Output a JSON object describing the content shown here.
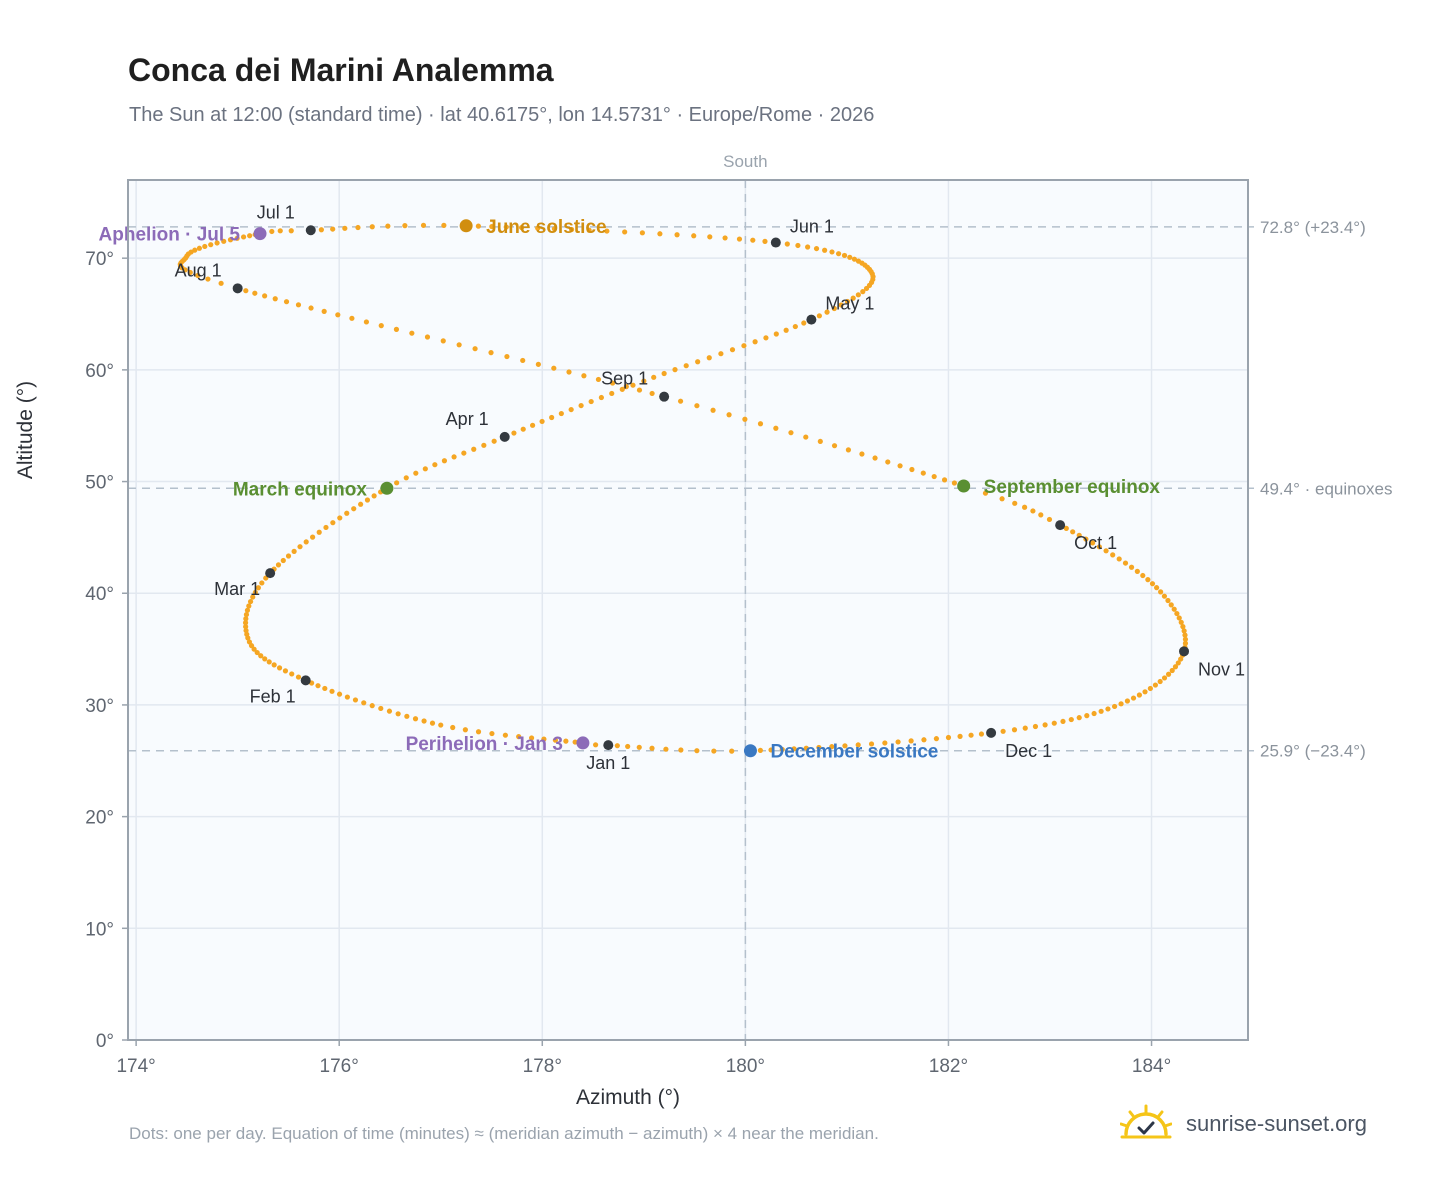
{
  "title": "Conca dei Marini Analemma",
  "subtitle": "The Sun at 12:00 (standard time) · lat 40.6175°, lon 14.5731° · Europe/Rome · 2026",
  "footnote": "Dots: one per day. Equation of time (minutes) ≈ (meridian azimuth − azimuth) × 4 near the meridian.",
  "brand": {
    "text": "sunrise-sunset.org",
    "icon": "sun-logo-icon"
  },
  "colors": {
    "path": "#f5a623",
    "month_dot": "#343a40",
    "june_solstice": "#d18e0f",
    "december_solstice": "#3a78c2",
    "equinox": "#5a8f32",
    "apsis": "#8c6bb8",
    "plot_bg": "#f8fbfe",
    "grid": "#e2e8f0",
    "frame": "#9aa3ad",
    "guide": "#b4c0cc"
  },
  "chart_data": {
    "type": "scatter",
    "xlabel": "Azimuth (°)",
    "ylabel": "Altitude (°)",
    "xlim": [
      173.92,
      184.95
    ],
    "ylim": [
      0,
      77
    ],
    "xticks": [
      174,
      176,
      178,
      180,
      182,
      184
    ],
    "xtick_labels": [
      "174°",
      "176°",
      "178°",
      "180°",
      "182°",
      "184°"
    ],
    "yticks": [
      0,
      10,
      20,
      30,
      40,
      50,
      60,
      70
    ],
    "ytick_labels": [
      "0°",
      "10°",
      "20°",
      "30°",
      "40°",
      "50°",
      "60°",
      "70°"
    ],
    "grid": true,
    "south_marker": {
      "x": 180,
      "label": "South"
    },
    "reference_lines": [
      {
        "y": 72.8,
        "label": "72.8° (+23.4°)"
      },
      {
        "y": 49.4,
        "label": "49.4° · equinoxes"
      },
      {
        "y": 25.9,
        "label": "25.9° (−23.4°)"
      }
    ],
    "anchors": [
      {
        "day": 1,
        "x": 178.65,
        "y": 26.4
      },
      {
        "day": 3,
        "x": 178.4,
        "y": 26.6
      },
      {
        "day": 15,
        "x": 177.0,
        "y": 28.2
      },
      {
        "day": 32,
        "x": 175.67,
        "y": 32.2
      },
      {
        "day": 45,
        "x": 175.1,
        "y": 36.0
      },
      {
        "day": 60,
        "x": 175.32,
        "y": 41.8
      },
      {
        "day": 79,
        "x": 176.47,
        "y": 49.4
      },
      {
        "day": 91,
        "x": 177.63,
        "y": 54.0
      },
      {
        "day": 105,
        "x": 179.0,
        "y": 59.0
      },
      {
        "day": 121,
        "x": 180.65,
        "y": 64.5
      },
      {
        "day": 135,
        "x": 181.25,
        "y": 68.6
      },
      {
        "day": 152,
        "x": 180.3,
        "y": 71.4
      },
      {
        "day": 172,
        "x": 177.25,
        "y": 72.9
      },
      {
        "day": 182,
        "x": 175.72,
        "y": 72.5
      },
      {
        "day": 186,
        "x": 175.22,
        "y": 72.2
      },
      {
        "day": 200,
        "x": 174.5,
        "y": 70.2
      },
      {
        "day": 213,
        "x": 175.0,
        "y": 67.3
      },
      {
        "day": 244,
        "x": 179.2,
        "y": 57.6
      },
      {
        "day": 266,
        "x": 182.15,
        "y": 49.6
      },
      {
        "day": 274,
        "x": 183.1,
        "y": 46.1
      },
      {
        "day": 290,
        "x": 184.05,
        "y": 40.5
      },
      {
        "day": 305,
        "x": 184.32,
        "y": 34.8
      },
      {
        "day": 320,
        "x": 183.7,
        "y": 30.1
      },
      {
        "day": 335,
        "x": 182.42,
        "y": 27.5
      },
      {
        "day": 355,
        "x": 180.05,
        "y": 25.9
      },
      {
        "day": 365,
        "x": 178.65,
        "y": 26.4
      }
    ],
    "months": [
      {
        "label": "Jan 1",
        "x": 178.65,
        "y": 26.4,
        "pos": "below"
      },
      {
        "label": "Feb 1",
        "x": 175.67,
        "y": 32.2,
        "pos": "below-left"
      },
      {
        "label": "Mar 1",
        "x": 175.32,
        "y": 41.8,
        "pos": "below-left"
      },
      {
        "label": "Apr 1",
        "x": 177.63,
        "y": 54.0,
        "pos": "above-left"
      },
      {
        "label": "May 1",
        "x": 180.65,
        "y": 64.5,
        "pos": "above-right"
      },
      {
        "label": "Jun 1",
        "x": 180.3,
        "y": 71.4,
        "pos": "above-right"
      },
      {
        "label": "Jul 1",
        "x": 175.72,
        "y": 72.5,
        "pos": "above-left"
      },
      {
        "label": "Aug 1",
        "x": 175.0,
        "y": 67.3,
        "pos": "above-left"
      },
      {
        "label": "Sep 1",
        "x": 179.2,
        "y": 57.6,
        "pos": "above-left"
      },
      {
        "label": "Oct 1",
        "x": 183.1,
        "y": 46.1,
        "pos": "below-right"
      },
      {
        "label": "Nov 1",
        "x": 184.32,
        "y": 34.8,
        "pos": "below-right"
      },
      {
        "label": "Dec 1",
        "x": 182.42,
        "y": 27.5,
        "pos": "below-right"
      }
    ],
    "events": [
      {
        "label": "June solstice",
        "x": 177.25,
        "y": 72.9,
        "side": "right",
        "color": "#d18e0f"
      },
      {
        "label": "December solstice",
        "x": 180.05,
        "y": 25.9,
        "side": "right",
        "color": "#3a78c2"
      },
      {
        "label": "March equinox",
        "x": 176.47,
        "y": 49.4,
        "side": "left",
        "color": "#5a8f32"
      },
      {
        "label": "September equinox",
        "x": 182.15,
        "y": 49.6,
        "side": "right",
        "color": "#5a8f32"
      },
      {
        "label": "Aphelion · Jul 5",
        "x": 175.22,
        "y": 72.2,
        "side": "left",
        "color": "#8c6bb8"
      },
      {
        "label": "Perihelion · Jan 3",
        "x": 178.4,
        "y": 26.6,
        "side": "left",
        "color": "#8c6bb8"
      }
    ]
  }
}
